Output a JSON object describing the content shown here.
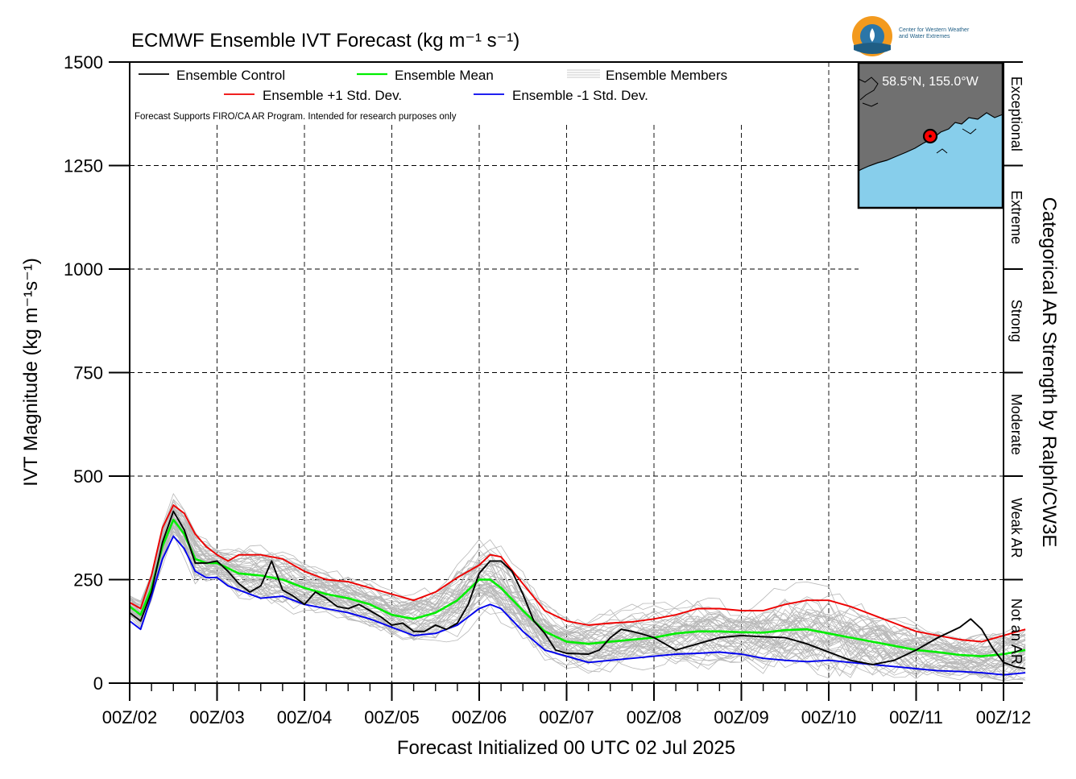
{
  "chart_data": {
    "type": "line",
    "title": "ECMWF Ensemble IVT Forecast (kg m⁻¹ s⁻¹)",
    "xlabel": "Forecast Initialized 00 UTC 02 Jul 2025",
    "ylabel": "IVT Magnitude (kg m⁻¹s⁻¹)",
    "right_label": "Categorical AR Strength by Ralph/CW3E",
    "note": "Forecast Supports FIRO/CA AR Program. Intended for research purposes only",
    "location": "58.5°N, 155.0°W",
    "logo_text": [
      "Center for Western Weather",
      "and Water Extremes"
    ],
    "xlim": [
      0,
      240
    ],
    "ylim": [
      0,
      1500
    ],
    "x_tick_labels": [
      "00Z/02",
      "00Z/03",
      "00Z/04",
      "00Z/05",
      "00Z/06",
      "00Z/07",
      "00Z/08",
      "00Z/09",
      "00Z/10",
      "00Z/11",
      "00Z/12"
    ],
    "x_ticks_hours": [
      0,
      24,
      48,
      72,
      96,
      120,
      144,
      168,
      192,
      216,
      240
    ],
    "y_ticks": [
      0,
      250,
      500,
      750,
      1000,
      1250,
      1500
    ],
    "categories_right": [
      {
        "label": "Not an AR",
        "from": 0,
        "to": 250
      },
      {
        "label": "Weak AR",
        "from": 250,
        "to": 500
      },
      {
        "label": "Moderate",
        "from": 500,
        "to": 750
      },
      {
        "label": "Strong",
        "from": 750,
        "to": 1000
      },
      {
        "label": "Extreme",
        "from": 1000,
        "to": 1250
      },
      {
        "label": "Exceptional",
        "from": 1250,
        "to": 1500
      }
    ],
    "grid": true,
    "legend_position": "top-left",
    "series": [
      {
        "name": "Ensemble Control",
        "color": "#000000",
        "points": [
          [
            0,
            170
          ],
          [
            3,
            150
          ],
          [
            6,
            220
          ],
          [
            9,
            340
          ],
          [
            12,
            415
          ],
          [
            15,
            370
          ],
          [
            18,
            290
          ],
          [
            21,
            290
          ],
          [
            24,
            295
          ],
          [
            27,
            270
          ],
          [
            30,
            240
          ],
          [
            33,
            220
          ],
          [
            36,
            235
          ],
          [
            39,
            295
          ],
          [
            42,
            225
          ],
          [
            45,
            210
          ],
          [
            48,
            190
          ],
          [
            51,
            220
          ],
          [
            54,
            205
          ],
          [
            57,
            185
          ],
          [
            60,
            180
          ],
          [
            63,
            190
          ],
          [
            66,
            175
          ],
          [
            69,
            160
          ],
          [
            72,
            140
          ],
          [
            75,
            145
          ],
          [
            78,
            125
          ],
          [
            81,
            125
          ],
          [
            84,
            140
          ],
          [
            87,
            130
          ],
          [
            90,
            145
          ],
          [
            93,
            190
          ],
          [
            96,
            265
          ],
          [
            99,
            295
          ],
          [
            102,
            295
          ],
          [
            105,
            270
          ],
          [
            108,
            215
          ],
          [
            111,
            150
          ],
          [
            114,
            120
          ],
          [
            117,
            80
          ],
          [
            120,
            72
          ],
          [
            126,
            70
          ],
          [
            129,
            80
          ],
          [
            132,
            110
          ],
          [
            135,
            130
          ],
          [
            138,
            125
          ],
          [
            141,
            118
          ],
          [
            144,
            110
          ],
          [
            147,
            95
          ],
          [
            150,
            80
          ],
          [
            156,
            95
          ],
          [
            162,
            110
          ],
          [
            168,
            115
          ],
          [
            174,
            112
          ],
          [
            180,
            110
          ],
          [
            186,
            95
          ],
          [
            192,
            75
          ],
          [
            198,
            55
          ],
          [
            204,
            45
          ],
          [
            210,
            55
          ],
          [
            216,
            80
          ],
          [
            222,
            110
          ],
          [
            228,
            135
          ],
          [
            231,
            155
          ],
          [
            234,
            130
          ],
          [
            237,
            85
          ],
          [
            240,
            50
          ],
          [
            243,
            40
          ],
          [
            246,
            35
          ]
        ]
      },
      {
        "name": "Ensemble Mean",
        "color": "#00ee00",
        "points": [
          [
            0,
            185
          ],
          [
            3,
            165
          ],
          [
            6,
            230
          ],
          [
            9,
            330
          ],
          [
            12,
            395
          ],
          [
            15,
            360
          ],
          [
            18,
            300
          ],
          [
            21,
            290
          ],
          [
            24,
            290
          ],
          [
            30,
            265
          ],
          [
            36,
            260
          ],
          [
            42,
            250
          ],
          [
            48,
            230
          ],
          [
            54,
            215
          ],
          [
            60,
            205
          ],
          [
            66,
            190
          ],
          [
            72,
            165
          ],
          [
            78,
            155
          ],
          [
            84,
            170
          ],
          [
            90,
            200
          ],
          [
            96,
            250
          ],
          [
            99,
            250
          ],
          [
            102,
            230
          ],
          [
            108,
            175
          ],
          [
            114,
            125
          ],
          [
            120,
            100
          ],
          [
            126,
            95
          ],
          [
            132,
            100
          ],
          [
            138,
            105
          ],
          [
            144,
            110
          ],
          [
            150,
            120
          ],
          [
            156,
            125
          ],
          [
            162,
            125
          ],
          [
            168,
            123
          ],
          [
            174,
            122
          ],
          [
            180,
            128
          ],
          [
            186,
            130
          ],
          [
            192,
            120
          ],
          [
            198,
            110
          ],
          [
            204,
            100
          ],
          [
            210,
            90
          ],
          [
            216,
            80
          ],
          [
            222,
            75
          ],
          [
            228,
            68
          ],
          [
            234,
            65
          ],
          [
            240,
            70
          ],
          [
            246,
            80
          ]
        ]
      },
      {
        "name": "Ensemble +1 Std. Dev.",
        "color": "#ee0000",
        "points": [
          [
            0,
            195
          ],
          [
            3,
            180
          ],
          [
            6,
            260
          ],
          [
            9,
            375
          ],
          [
            12,
            430
          ],
          [
            15,
            410
          ],
          [
            18,
            360
          ],
          [
            21,
            330
          ],
          [
            24,
            310
          ],
          [
            27,
            295
          ],
          [
            30,
            310
          ],
          [
            36,
            310
          ],
          [
            42,
            300
          ],
          [
            48,
            270
          ],
          [
            54,
            250
          ],
          [
            60,
            245
          ],
          [
            66,
            230
          ],
          [
            72,
            215
          ],
          [
            78,
            200
          ],
          [
            84,
            220
          ],
          [
            90,
            255
          ],
          [
            96,
            285
          ],
          [
            99,
            310
          ],
          [
            102,
            305
          ],
          [
            108,
            240
          ],
          [
            114,
            175
          ],
          [
            120,
            150
          ],
          [
            126,
            140
          ],
          [
            132,
            145
          ],
          [
            138,
            148
          ],
          [
            144,
            155
          ],
          [
            150,
            165
          ],
          [
            156,
            180
          ],
          [
            162,
            180
          ],
          [
            168,
            175
          ],
          [
            174,
            175
          ],
          [
            180,
            190
          ],
          [
            186,
            200
          ],
          [
            192,
            200
          ],
          [
            198,
            185
          ],
          [
            204,
            165
          ],
          [
            210,
            145
          ],
          [
            216,
            125
          ],
          [
            222,
            115
          ],
          [
            228,
            105
          ],
          [
            234,
            100
          ],
          [
            240,
            115
          ],
          [
            246,
            130
          ]
        ]
      },
      {
        "name": "Ensemble -1 Std. Dev.",
        "color": "#0000ee",
        "points": [
          [
            0,
            150
          ],
          [
            3,
            130
          ],
          [
            6,
            210
          ],
          [
            9,
            300
          ],
          [
            12,
            355
          ],
          [
            15,
            325
          ],
          [
            18,
            270
          ],
          [
            21,
            255
          ],
          [
            24,
            255
          ],
          [
            27,
            235
          ],
          [
            30,
            225
          ],
          [
            36,
            205
          ],
          [
            42,
            210
          ],
          [
            48,
            190
          ],
          [
            54,
            180
          ],
          [
            60,
            170
          ],
          [
            66,
            155
          ],
          [
            72,
            135
          ],
          [
            78,
            115
          ],
          [
            84,
            120
          ],
          [
            90,
            140
          ],
          [
            96,
            180
          ],
          [
            99,
            190
          ],
          [
            102,
            180
          ],
          [
            108,
            125
          ],
          [
            114,
            80
          ],
          [
            120,
            65
          ],
          [
            126,
            50
          ],
          [
            132,
            55
          ],
          [
            138,
            60
          ],
          [
            144,
            65
          ],
          [
            150,
            70
          ],
          [
            156,
            72
          ],
          [
            162,
            75
          ],
          [
            168,
            70
          ],
          [
            174,
            60
          ],
          [
            180,
            55
          ],
          [
            186,
            52
          ],
          [
            192,
            55
          ],
          [
            198,
            50
          ],
          [
            204,
            45
          ],
          [
            210,
            40
          ],
          [
            216,
            35
          ],
          [
            222,
            30
          ],
          [
            228,
            28
          ],
          [
            234,
            25
          ],
          [
            240,
            20
          ],
          [
            246,
            25
          ]
        ]
      }
    ],
    "members_legend": "Ensemble Members",
    "members_color": "#b8b8b8"
  }
}
